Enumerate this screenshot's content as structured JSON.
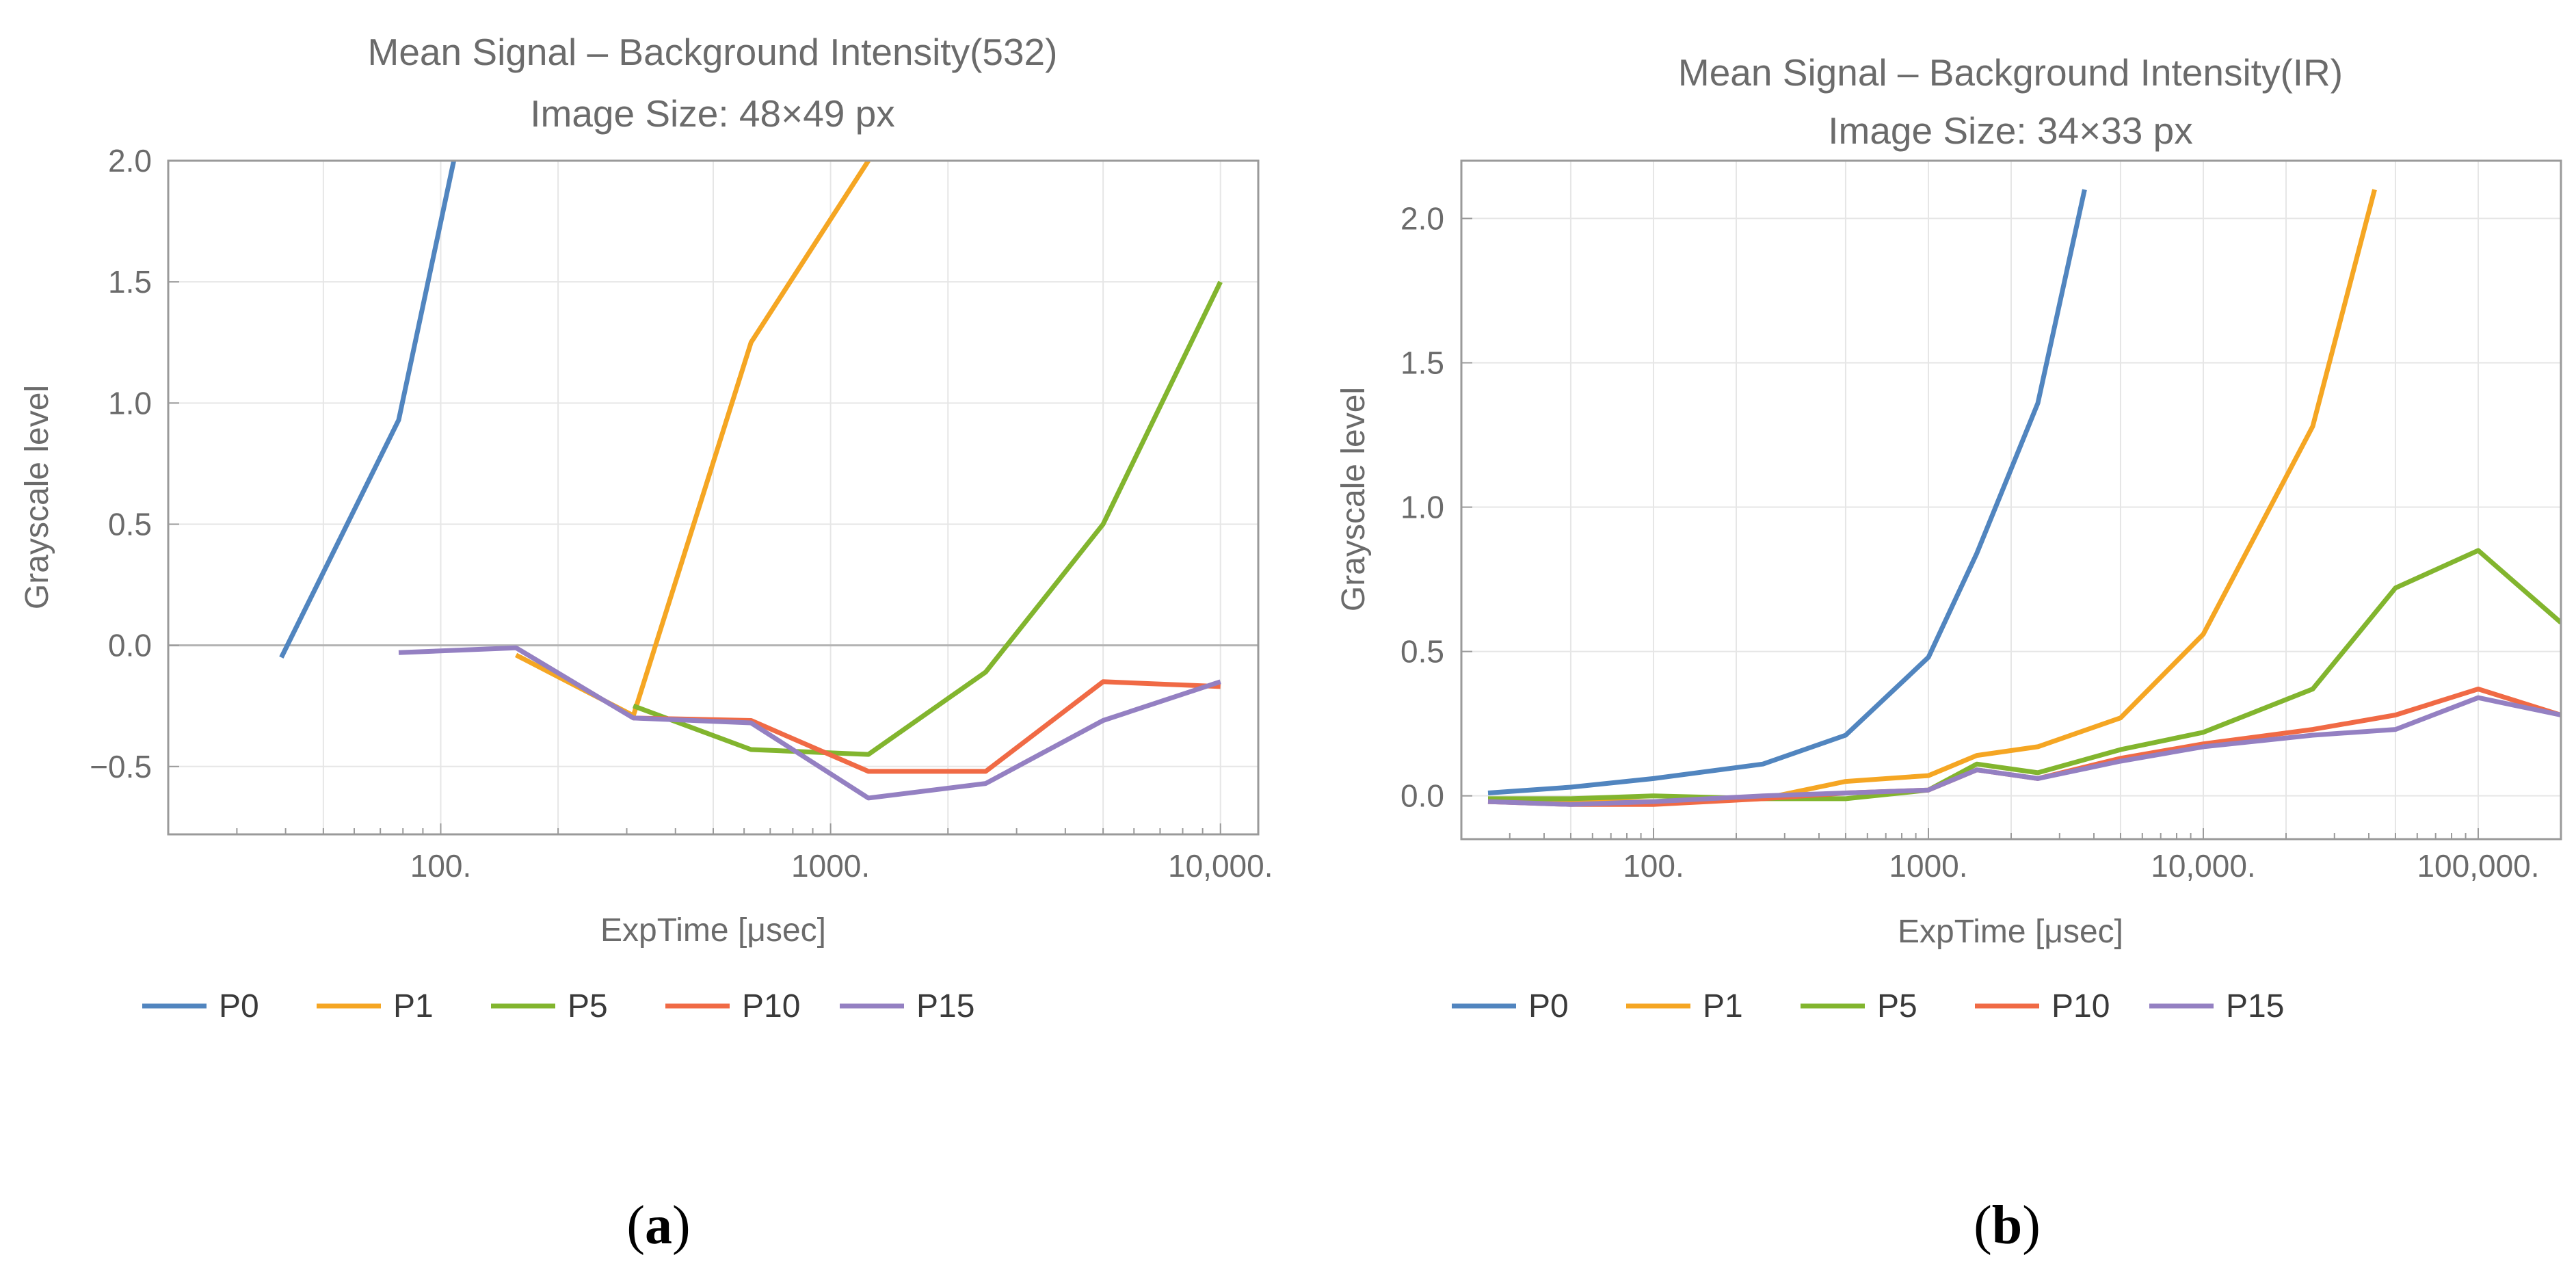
{
  "colors": {
    "P0": "#5185bf",
    "P1": "#f5a623",
    "P5": "#82b52e",
    "P10": "#f06a45",
    "P15": "#9480c2",
    "frame": "#9a9a9a",
    "grid": "#e6e6e6",
    "zero_line": "#b3b3b3",
    "text": "#6b6b6b"
  },
  "legend": [
    "P0",
    "P1",
    "P5",
    "P10",
    "P15"
  ],
  "panel_labels": [
    {
      "open": "(",
      "letter": "a",
      "close": ")"
    },
    {
      "open": "(",
      "letter": "b",
      "close": ")"
    }
  ],
  "chart_data": [
    {
      "type": "line",
      "title": "Mean Signal – Background Intensity(532)",
      "subtitle": "Image Size: 48×49 px",
      "xlabel": "ExpTime [μsec]",
      "ylabel": "Grayscale level",
      "xscale": "log",
      "xlim": [
        20,
        12500
      ],
      "ylim": [
        -0.78,
        2.0
      ],
      "xticks": [
        {
          "value": 100,
          "label": "100."
        },
        {
          "value": 1000,
          "label": "1000."
        },
        {
          "value": 10000,
          "label": "10,000."
        }
      ],
      "yticks": [
        {
          "value": -0.5,
          "label": "−0.5"
        },
        {
          "value": 0.0,
          "label": "0.0"
        },
        {
          "value": 0.5,
          "label": "0.5"
        },
        {
          "value": 1.0,
          "label": "1.0"
        },
        {
          "value": 1.5,
          "label": "1.5"
        },
        {
          "value": 2.0,
          "label": "2.0"
        }
      ],
      "legend_position": "bottom",
      "series": [
        {
          "name": "P0",
          "x": [
            39,
            78,
            108
          ],
          "y": [
            -0.05,
            0.93,
            2.0
          ]
        },
        {
          "name": "P1",
          "x": [
            156,
            312,
            625,
            1250
          ],
          "y": [
            -0.04,
            -0.29,
            1.25,
            2.0
          ]
        },
        {
          "name": "P5",
          "x": [
            312,
            625,
            1250,
            2500,
            5000,
            10000
          ],
          "y": [
            -0.25,
            -0.43,
            -0.45,
            -0.11,
            0.5,
            1.5
          ]
        },
        {
          "name": "P10",
          "x": [
            312,
            625,
            1250,
            2500,
            5000,
            10000
          ],
          "y": [
            -0.3,
            -0.31,
            -0.52,
            -0.52,
            -0.15,
            -0.17
          ]
        },
        {
          "name": "P15",
          "x": [
            78,
            156,
            312,
            625,
            1250,
            2500,
            5000,
            10000
          ],
          "y": [
            -0.03,
            -0.01,
            -0.3,
            -0.32,
            -0.63,
            -0.57,
            -0.31,
            -0.15
          ]
        }
      ]
    },
    {
      "type": "line",
      "title": "Mean Signal – Background Intensity(IR)",
      "subtitle": "Image Size: 34×33 px",
      "xlabel": "ExpTime [μsec]",
      "ylabel": "Grayscale level",
      "xscale": "log",
      "xlim": [
        20,
        200000
      ],
      "ylim": [
        -0.15,
        2.2
      ],
      "xticks": [
        {
          "value": 100,
          "label": "100."
        },
        {
          "value": 1000,
          "label": "1000."
        },
        {
          "value": 10000,
          "label": "10,000."
        },
        {
          "value": 100000,
          "label": "100,000."
        }
      ],
      "yticks": [
        {
          "value": 0.0,
          "label": "0.0"
        },
        {
          "value": 0.5,
          "label": "0.5"
        },
        {
          "value": 1.0,
          "label": "1.0"
        },
        {
          "value": 1.5,
          "label": "1.5"
        },
        {
          "value": 2.0,
          "label": "2.0"
        }
      ],
      "legend_position": "bottom",
      "series": [
        {
          "name": "P0",
          "x": [
            25,
            50,
            100,
            250,
            500,
            1000,
            1500,
            2500,
            3700
          ],
          "y": [
            0.01,
            0.03,
            0.06,
            0.11,
            0.21,
            0.48,
            0.84,
            1.36,
            2.1
          ]
        },
        {
          "name": "P1",
          "x": [
            25,
            50,
            100,
            250,
            500,
            1000,
            1500,
            2500,
            5000,
            10000,
            25000,
            42000
          ],
          "y": [
            -0.02,
            -0.02,
            -0.02,
            -0.01,
            0.05,
            0.07,
            0.14,
            0.17,
            0.27,
            0.56,
            1.28,
            2.1
          ]
        },
        {
          "name": "P5",
          "x": [
            25,
            50,
            100,
            250,
            500,
            1000,
            1500,
            2500,
            5000,
            10000,
            25000,
            50000,
            100000,
            200000
          ],
          "y": [
            -0.01,
            -0.01,
            0.0,
            -0.01,
            -0.01,
            0.02,
            0.11,
            0.08,
            0.16,
            0.22,
            0.37,
            0.72,
            0.85,
            0.6
          ]
        },
        {
          "name": "P10",
          "x": [
            25,
            50,
            100,
            250,
            500,
            1000,
            1500,
            2500,
            5000,
            10000,
            25000,
            50000,
            100000,
            200000
          ],
          "y": [
            -0.02,
            -0.03,
            -0.03,
            -0.01,
            0.01,
            0.02,
            0.09,
            0.06,
            0.13,
            0.18,
            0.23,
            0.28,
            0.37,
            0.28
          ]
        },
        {
          "name": "P15",
          "x": [
            25,
            50,
            100,
            250,
            500,
            1000,
            1500,
            2500,
            5000,
            10000,
            25000,
            50000,
            100000,
            200000
          ],
          "y": [
            -0.02,
            -0.03,
            -0.02,
            0.0,
            0.01,
            0.02,
            0.09,
            0.06,
            0.12,
            0.17,
            0.21,
            0.23,
            0.34,
            0.28
          ]
        }
      ]
    }
  ]
}
